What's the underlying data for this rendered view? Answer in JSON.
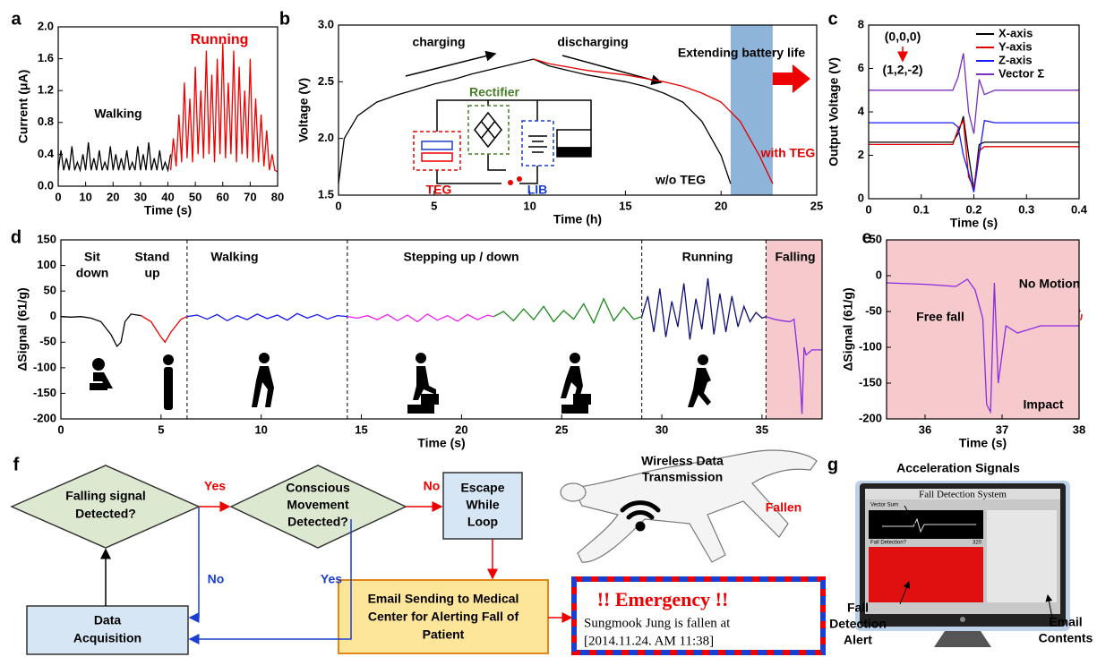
{
  "panel_labels": [
    "a",
    "b",
    "c",
    "d",
    "e",
    "f",
    "g"
  ],
  "chart_data": [
    {
      "type": "line",
      "xlabel": "Time (s)",
      "ylabel": "Current (μA)",
      "xlim": [
        0,
        80
      ],
      "xticks": [
        0,
        10,
        20,
        30,
        40,
        50,
        60,
        70,
        80
      ],
      "ylim": [
        0,
        2
      ],
      "yticks": [
        {
          "value": 0,
          "label": "0.0"
        },
        0.4,
        0.8,
        1.2,
        1.6,
        {
          "value": 2,
          "label": "2.0"
        }
      ],
      "series": [
        {
          "name": "Walking",
          "color": "#000000",
          "x": [
            0,
            1,
            2,
            3,
            4,
            5,
            6,
            7,
            8,
            9,
            10,
            11,
            12,
            13,
            14,
            15,
            16,
            17,
            18,
            19,
            20,
            21,
            22,
            23,
            24,
            25,
            26,
            27,
            28,
            29,
            30,
            31,
            32,
            33,
            34,
            35,
            36,
            37,
            38,
            39,
            40,
            41
          ],
          "values": [
            0.2,
            0.45,
            0.2,
            0.35,
            0.2,
            0.5,
            0.2,
            0.3,
            0.2,
            0.4,
            0.2,
            0.55,
            0.2,
            0.35,
            0.2,
            0.45,
            0.2,
            0.3,
            0.2,
            0.5,
            0.2,
            0.4,
            0.2,
            0.35,
            0.2,
            0.45,
            0.2,
            0.3,
            0.2,
            0.5,
            0.2,
            0.4,
            0.2,
            0.55,
            0.2,
            0.35,
            0.2,
            0.45,
            0.2,
            0.3,
            0.2,
            0.4
          ]
        },
        {
          "name": "Running",
          "color": "#ee0000",
          "x": [
            41,
            42,
            43,
            44,
            45,
            46,
            47,
            48,
            49,
            50,
            51,
            52,
            53,
            54,
            55,
            56,
            57,
            58,
            59,
            60,
            61,
            62,
            63,
            64,
            65,
            66,
            67,
            68,
            69,
            70,
            71,
            72,
            73,
            74,
            75,
            76,
            77,
            78,
            79,
            80
          ],
          "values": [
            0.2,
            0.6,
            0.25,
            0.9,
            0.3,
            1.3,
            0.35,
            1.1,
            0.3,
            1.5,
            0.4,
            1.2,
            0.35,
            1.7,
            0.4,
            1.4,
            0.3,
            1.6,
            0.4,
            1.8,
            0.35,
            1.3,
            0.4,
            1.7,
            0.3,
            1.5,
            0.4,
            1.2,
            0.35,
            1.6,
            0.3,
            1.1,
            0.3,
            0.9,
            0.25,
            0.7,
            0.2,
            0.4,
            0.2,
            0.18
          ]
        }
      ]
    },
    {
      "type": "line",
      "xlabel": "Time (h)",
      "ylabel": "Voltage (V)",
      "xlim": [
        0,
        25
      ],
      "xticks": [
        0,
        5,
        10,
        15,
        20,
        25
      ],
      "ylim": [
        1.5,
        3
      ],
      "yticks": [
        1.5,
        {
          "value": 2,
          "label": "2.0"
        },
        2.5,
        {
          "value": 3,
          "label": "3.0"
        }
      ],
      "highlight_x": [
        20.5,
        22.7
      ],
      "highlight_color": "#8fb4d9",
      "series": [
        {
          "name": "w/o TEG",
          "color": "#000000",
          "x": [
            0,
            0.3,
            1,
            2,
            3,
            4,
            5,
            6,
            7,
            8,
            9,
            10.2,
            11,
            12,
            13,
            14,
            15,
            16,
            17,
            18,
            19,
            20,
            20.5
          ],
          "values": [
            1.6,
            2.0,
            2.2,
            2.32,
            2.38,
            2.43,
            2.48,
            2.52,
            2.57,
            2.61,
            2.65,
            2.7,
            2.64,
            2.6,
            2.56,
            2.53,
            2.5,
            2.46,
            2.4,
            2.32,
            2.15,
            1.85,
            1.6
          ]
        },
        {
          "name": "with TEG",
          "color": "#e00000",
          "x": [
            10.2,
            11,
            12,
            13,
            14,
            15,
            16,
            17,
            18,
            19,
            20,
            21,
            22,
            22.7
          ],
          "values": [
            2.7,
            2.66,
            2.63,
            2.6,
            2.58,
            2.56,
            2.53,
            2.5,
            2.46,
            2.4,
            2.32,
            2.15,
            1.85,
            1.6
          ]
        }
      ],
      "annotations": [
        {
          "text": "charging",
          "color": "#000000"
        },
        {
          "text": "discharging",
          "color": "#000000"
        },
        {
          "text": "Extending battery life",
          "color": "#000000"
        },
        {
          "text": "Rectifier",
          "color": "#4a7f2a"
        },
        {
          "text": "TEG",
          "color": "#e00000"
        },
        {
          "text": "LIB",
          "color": "#1a3fd0"
        }
      ]
    },
    {
      "type": "line",
      "xlabel": "Time (s)",
      "ylabel": "Output Voltage (V)",
      "xlim": [
        0,
        0.4
      ],
      "xticks": [
        0,
        0.1,
        0.2,
        0.3,
        0.4
      ],
      "ylim": [
        0,
        8
      ],
      "yticks": [
        0,
        2,
        4,
        6,
        8
      ],
      "legend": "upper right",
      "series": [
        {
          "name": "X-axis",
          "color": "#000000",
          "x": [
            0,
            0.16,
            0.17,
            0.18,
            0.19,
            0.2,
            0.21,
            0.22,
            0.24,
            0.4
          ],
          "values": [
            2.6,
            2.6,
            3.0,
            3.8,
            2.0,
            0.4,
            2.5,
            2.6,
            2.6,
            2.6
          ]
        },
        {
          "name": "Y-axis",
          "color": "#e00000",
          "x": [
            0,
            0.16,
            0.17,
            0.18,
            0.19,
            0.2,
            0.21,
            0.22,
            0.24,
            0.4
          ],
          "values": [
            2.5,
            2.5,
            3.2,
            3.6,
            1.0,
            0.5,
            2.2,
            2.4,
            2.4,
            2.4
          ]
        },
        {
          "name": "Z-axis",
          "color": "#1a1aff",
          "x": [
            0,
            0.16,
            0.17,
            0.18,
            0.19,
            0.2,
            0.21,
            0.22,
            0.24,
            0.4
          ],
          "values": [
            3.5,
            3.5,
            3.3,
            2.0,
            1.2,
            0.3,
            2.0,
            3.6,
            3.5,
            3.5
          ]
        },
        {
          "name": "Vector Σ",
          "color": "#7b2fbf",
          "x": [
            0,
            0.16,
            0.17,
            0.18,
            0.19,
            0.2,
            0.21,
            0.22,
            0.24,
            0.4
          ],
          "values": [
            5.0,
            5.0,
            5.6,
            6.7,
            4.0,
            3.0,
            5.5,
            4.8,
            5.0,
            5.0
          ]
        }
      ],
      "annotations": [
        {
          "text": "(0,0,0)",
          "color": "#000000"
        },
        {
          "text": "(1,2,-2)",
          "color": "#000000"
        }
      ]
    },
    {
      "type": "line",
      "xlabel": "Time (s)",
      "ylabel": "ΔSignal (61/g)",
      "xlim": [
        0,
        38
      ],
      "xticks": [
        0,
        5,
        10,
        15,
        20,
        25,
        30,
        35
      ],
      "ylim": [
        -200,
        150
      ],
      "yticks": [
        -200,
        -150,
        -100,
        -50,
        0,
        50,
        100,
        150
      ],
      "dividers": [
        6.3,
        14.3,
        29,
        35.2
      ],
      "highlight_x": [
        35.2,
        38
      ],
      "highlight_color": "#f6c9cc",
      "sections": [
        [
          "Sit",
          "down"
        ],
        [
          "Stand",
          "up"
        ],
        [
          "Walking"
        ],
        [
          "Stepping up / down"
        ],
        [
          "Running"
        ],
        [
          "Falling"
        ]
      ],
      "series": [
        {
          "color": "#000000",
          "x": [
            0,
            0.5,
            1,
            1.5,
            2,
            2.5,
            2.8,
            3,
            3.2,
            3.5,
            4
          ],
          "values": [
            0,
            -1,
            0,
            -3,
            -10,
            -35,
            -58,
            -50,
            -10,
            5,
            2
          ]
        },
        {
          "color": "#ee0000",
          "x": [
            4,
            4.5,
            5,
            5.2,
            5.5,
            6,
            6.3
          ],
          "values": [
            2,
            -10,
            -40,
            -50,
            -30,
            -5,
            0
          ]
        },
        {
          "color": "#1a1aee",
          "x": [
            6.3,
            6.8,
            7.3,
            7.8,
            8.3,
            8.8,
            9.3,
            9.8,
            10.3,
            10.8,
            11.3,
            11.8,
            12.3,
            12.8,
            13.3,
            13.8,
            14.3
          ],
          "values": [
            0,
            3,
            -5,
            4,
            -8,
            2,
            -6,
            5,
            -4,
            3,
            -7,
            6,
            -3,
            4,
            -5,
            2,
            0
          ]
        },
        {
          "color": "#ee22ee",
          "x": [
            14.3,
            14.8,
            15.3,
            15.8,
            16.3,
            16.8,
            17.3,
            17.8,
            18.3,
            18.8,
            19.3,
            19.8,
            20.3,
            20.8,
            21.3,
            21.6
          ],
          "values": [
            0,
            -3,
            2,
            -6,
            4,
            -8,
            3,
            -10,
            5,
            -7,
            2,
            -9,
            4,
            -6,
            3,
            0
          ]
        },
        {
          "color": "#1e8a1e",
          "x": [
            21.6,
            22.1,
            22.6,
            23.1,
            23.6,
            24.1,
            24.6,
            25.1,
            25.6,
            26.1,
            26.6,
            27.1,
            27.6,
            28.1,
            28.6,
            29
          ],
          "values": [
            0,
            10,
            -8,
            15,
            -6,
            20,
            -10,
            12,
            -5,
            25,
            -12,
            35,
            -8,
            18,
            -5,
            0
          ]
        },
        {
          "color": "#10107a",
          "x": [
            29,
            29.3,
            29.6,
            29.9,
            30.2,
            30.5,
            30.8,
            31.1,
            31.4,
            31.7,
            32,
            32.3,
            32.6,
            32.9,
            33.2,
            33.5,
            33.8,
            34.1,
            34.4,
            34.7,
            35,
            35.2
          ],
          "values": [
            0,
            40,
            -30,
            55,
            -40,
            30,
            -20,
            65,
            -45,
            35,
            -25,
            75,
            -35,
            45,
            -30,
            40,
            -20,
            20,
            -10,
            8,
            -3,
            0
          ]
        },
        {
          "color": "#8a2be2",
          "x": [
            35.2,
            35.6,
            36,
            36.4,
            36.6,
            36.8,
            36.9,
            37,
            37.1,
            37.2,
            37.5,
            38
          ],
          "values": [
            0,
            -5,
            -8,
            -10,
            -5,
            -80,
            -120,
            -190,
            -60,
            -75,
            -65,
            -65
          ]
        }
      ]
    },
    {
      "type": "line",
      "xlabel": "Time (s)",
      "ylabel": "ΔSignal (61/g)",
      "xlim": [
        35.5,
        38
      ],
      "xticks": [
        36,
        37,
        38
      ],
      "ylim": [
        -200,
        50
      ],
      "yticks": [
        -200,
        -150,
        -100,
        -50,
        0,
        50
      ],
      "background": "#f6c9cc",
      "series": [
        {
          "color": "#8a2be2",
          "x": [
            35.5,
            36,
            36.4,
            36.55,
            36.65,
            36.75,
            36.8,
            36.85,
            36.9,
            36.95,
            37.05,
            37.2,
            37.5,
            38
          ],
          "values": [
            -10,
            -12,
            -15,
            -5,
            -20,
            -60,
            -180,
            -190,
            -10,
            -150,
            -70,
            -80,
            -70,
            -70
          ]
        }
      ],
      "annotations": [
        {
          "text": "Free fall",
          "color": "#000000"
        },
        {
          "text": "No Motion",
          "color": "#000000"
        },
        {
          "text": "Impact",
          "color": "#000000"
        }
      ]
    }
  ],
  "flowchart": {
    "nodes": [
      {
        "label": [
          "Falling signal",
          "Detected?"
        ]
      },
      {
        "label": [
          "Conscious",
          "Movement",
          "Detected?"
        ]
      },
      {
        "label": [
          "Escape",
          "While",
          "Loop"
        ]
      },
      {
        "label": [
          "Data",
          "Acquisition"
        ]
      },
      {
        "label": [
          "Email Sending to Medical",
          "Center for Alerting Fall of",
          "Patient"
        ]
      }
    ],
    "edge_labels": [
      "Yes",
      "No",
      "No",
      "Yes"
    ],
    "email": {
      "title": "!! Emergency !!",
      "body": [
        "Sungmook Jung is fallen at",
        "[2014.11.24.  AM 11:38]"
      ]
    },
    "image_labels": {
      "wireless": [
        "Wireless Data",
        "Transmission"
      ],
      "fallen": "Fallen"
    }
  },
  "monitor": {
    "caption": "Acceleration Signals",
    "window_title": "Fall Detection System",
    "screen_texts": [
      "Vector Sum",
      "Fall Detection?",
      "320"
    ],
    "alert_label": [
      "Fall",
      "Detection",
      "Alert"
    ],
    "email_label": [
      "Email",
      "Contents"
    ]
  }
}
